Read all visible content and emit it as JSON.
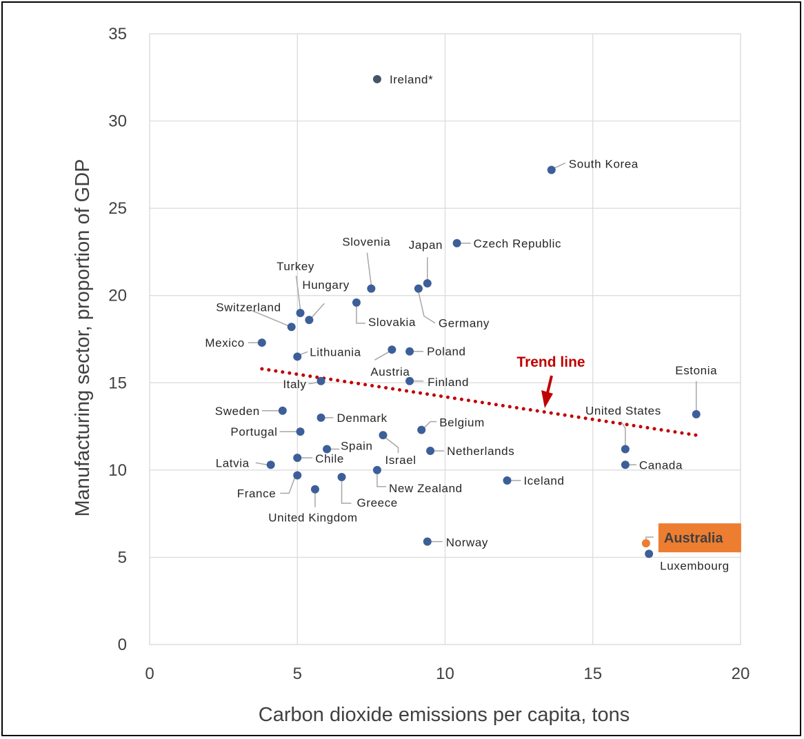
{
  "chart_data": {
    "type": "scatter",
    "xlabel": "Carbon dioxide emissions per capita, tons",
    "ylabel": "Manufacturing sector, proportion of GDP",
    "xlim": [
      0,
      20
    ],
    "ylim": [
      0,
      35
    ],
    "x_ticks": [
      "0",
      "5",
      "10",
      "15",
      "20"
    ],
    "y_ticks": [
      "0",
      "5",
      "10",
      "15",
      "20",
      "25",
      "30",
      "35"
    ],
    "grid": true,
    "colors": {
      "point": "#3d5f99",
      "point_outlier": "#44546a",
      "highlight": "#ed7d31",
      "trend": "#c00000",
      "grid": "#d9d9d9",
      "leader": "#a6a6a6"
    },
    "trend_line": {
      "label": "Trend line",
      "x": [
        3.8,
        18.5
      ],
      "y": [
        15.8,
        12.0
      ]
    },
    "points": [
      {
        "name": "Ireland*",
        "x": 7.7,
        "y": 32.4
      },
      {
        "name": "South Korea",
        "x": 13.6,
        "y": 27.2
      },
      {
        "name": "Czech Republic",
        "x": 10.4,
        "y": 23.0
      },
      {
        "name": "Japan",
        "x": 9.4,
        "y": 20.7
      },
      {
        "name": "Germany",
        "x": 9.1,
        "y": 20.4
      },
      {
        "name": "Slovenia",
        "x": 7.5,
        "y": 20.4
      },
      {
        "name": "Slovakia",
        "x": 7.0,
        "y": 19.6
      },
      {
        "name": "Turkey",
        "x": 5.1,
        "y": 19.0
      },
      {
        "name": "Hungary",
        "x": 5.4,
        "y": 18.6
      },
      {
        "name": "Switzerland",
        "x": 4.8,
        "y": 18.2
      },
      {
        "name": "Mexico",
        "x": 3.8,
        "y": 17.3
      },
      {
        "name": "Lithuania",
        "x": 5.0,
        "y": 16.5
      },
      {
        "name": "Austria",
        "x": 8.2,
        "y": 16.9
      },
      {
        "name": "Poland",
        "x": 8.8,
        "y": 16.8
      },
      {
        "name": "Italy",
        "x": 5.8,
        "y": 15.1
      },
      {
        "name": "Finland",
        "x": 8.8,
        "y": 15.1
      },
      {
        "name": "Estonia",
        "x": 18.5,
        "y": 13.2
      },
      {
        "name": "Sweden",
        "x": 4.5,
        "y": 13.4
      },
      {
        "name": "Denmark",
        "x": 5.8,
        "y": 13.0
      },
      {
        "name": "Belgium",
        "x": 9.2,
        "y": 12.3
      },
      {
        "name": "Portugal",
        "x": 5.1,
        "y": 12.2
      },
      {
        "name": "Israel",
        "x": 7.9,
        "y": 12.0
      },
      {
        "name": "Spain",
        "x": 6.0,
        "y": 11.2
      },
      {
        "name": "United States",
        "x": 16.1,
        "y": 11.2
      },
      {
        "name": "Netherlands",
        "x": 9.5,
        "y": 11.1
      },
      {
        "name": "Chile",
        "x": 5.0,
        "y": 10.7
      },
      {
        "name": "Latvia",
        "x": 4.1,
        "y": 10.3
      },
      {
        "name": "Canada",
        "x": 16.1,
        "y": 10.3
      },
      {
        "name": "New Zealand",
        "x": 7.7,
        "y": 10.0
      },
      {
        "name": "France",
        "x": 5.0,
        "y": 9.7
      },
      {
        "name": "Greece",
        "x": 6.5,
        "y": 9.6
      },
      {
        "name": "Iceland",
        "x": 12.1,
        "y": 9.4
      },
      {
        "name": "United Kingdom",
        "x": 5.6,
        "y": 8.9
      },
      {
        "name": "Norway",
        "x": 9.4,
        "y": 5.9
      },
      {
        "name": "Australia",
        "x": 16.8,
        "y": 5.8,
        "highlight": true
      },
      {
        "name": "Luxembourg",
        "x": 16.9,
        "y": 5.2
      }
    ]
  }
}
